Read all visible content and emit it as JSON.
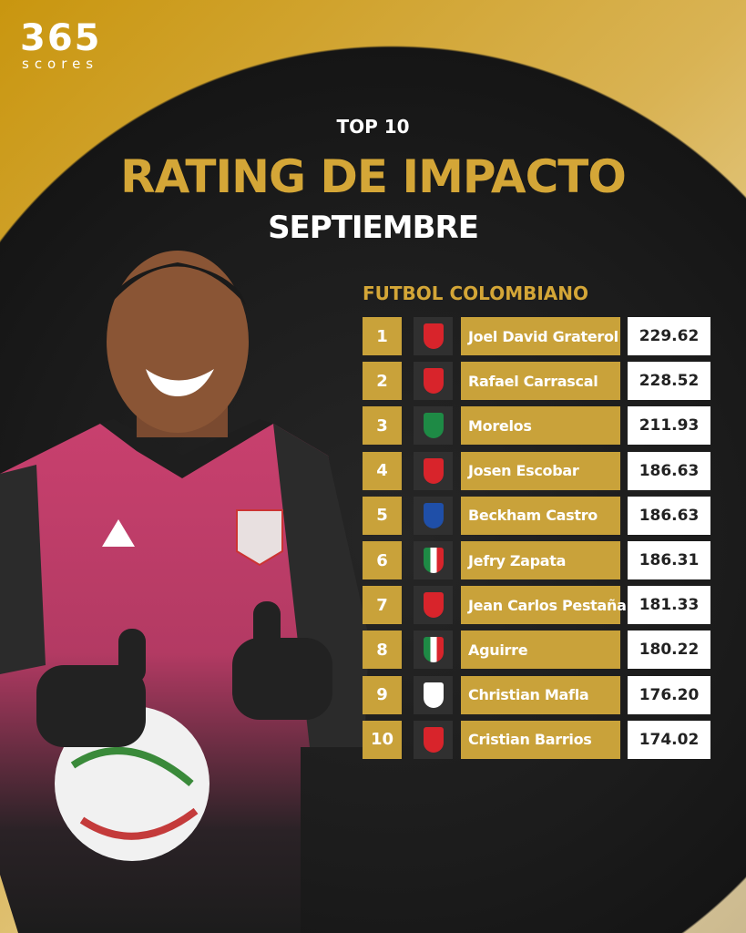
{
  "logo": {
    "number": "365",
    "word": "scores"
  },
  "header": {
    "top": "TOP 10",
    "title": "RATING DE IMPACTO",
    "month": "SEPTIEMBRE"
  },
  "league": "FUTBOL COLOMBIANO",
  "colors": {
    "gold": "#c9a23a",
    "title_gold": "#d4a637",
    "dark": "#1b1b1b",
    "jersey_pink": "#c8406e"
  },
  "rows": [
    {
      "rank": "1",
      "club_icon": "america-de-cali-crest",
      "name": "Joel David Graterol",
      "rating": "229.62"
    },
    {
      "rank": "2",
      "club_icon": "america-de-cali-crest",
      "name": "Rafael Carrascal",
      "rating": "228.52"
    },
    {
      "rank": "3",
      "club_icon": "atletico-nacional-crest",
      "name": "Morelos",
      "rating": "211.93"
    },
    {
      "rank": "4",
      "club_icon": "america-de-cali-crest",
      "name": "Josen Escobar",
      "rating": "186.63"
    },
    {
      "rank": "5",
      "club_icon": "millonarios-crest",
      "name": "Beckham Castro",
      "rating": "186.63"
    },
    {
      "rank": "6",
      "club_icon": "once-caldas-crest",
      "name": "Jefry Zapata",
      "rating": "186.31"
    },
    {
      "rank": "7",
      "club_icon": "america-de-cali-crest",
      "name": "Jean Carlos Pestaña",
      "rating": "181.33"
    },
    {
      "rank": "8",
      "club_icon": "once-caldas-crest",
      "name": "Aguirre",
      "rating": "180.22"
    },
    {
      "rank": "9",
      "club_icon": "santa-fe-crest",
      "name": "Christian Mafla",
      "rating": "176.20"
    },
    {
      "rank": "10",
      "club_icon": "america-de-cali-crest",
      "name": "Cristian Barrios",
      "rating": "174.02"
    }
  ]
}
